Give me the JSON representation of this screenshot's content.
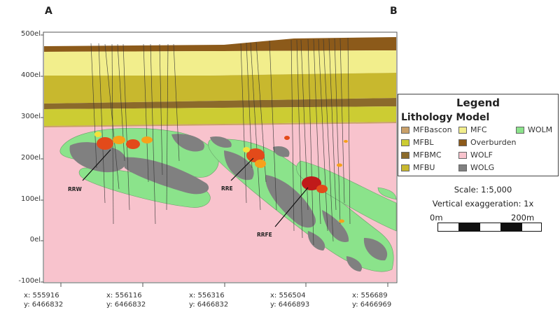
{
  "corners": {
    "left": "A",
    "right": "B"
  },
  "elevation_axis": [
    "500el",
    "400el",
    "300el",
    "200el",
    "100el",
    "0el",
    "-100el"
  ],
  "coordinates": [
    {
      "x": "x: 555916",
      "y": "y: 6466832"
    },
    {
      "x": "x: 556116",
      "y": "y: 6466832"
    },
    {
      "x": "x: 556316",
      "y": "y: 6466832"
    },
    {
      "x": "x: 556504",
      "y": "y: 6466893"
    },
    {
      "x": "x: 556689",
      "y": "y: 6466969"
    }
  ],
  "deposit_labels": [
    "RRW",
    "RRE",
    "RRFE"
  ],
  "legend": {
    "title": "Legend",
    "subtitle": "Lithology Model",
    "items": [
      {
        "label": "MFBascon",
        "color": "#c9a06a"
      },
      {
        "label": "MFBL",
        "color": "#cccc33"
      },
      {
        "label": "MFBMC",
        "color": "#8b6a2b"
      },
      {
        "label": "MFBU",
        "color": "#c8b82e"
      },
      {
        "label": "MFC",
        "color": "#f2ee8c"
      },
      {
        "label": "Overburden",
        "color": "#8c5a1a"
      },
      {
        "label": "WOLF",
        "color": "#f8c3cd"
      },
      {
        "label": "WOLG",
        "color": "#808080"
      },
      {
        "label": "WOLM",
        "color": "#8be38b"
      }
    ]
  },
  "scale": {
    "ratio": "Scale: 1:5,000",
    "exaggeration": "Vertical exaggeration: 1x",
    "start": "0m",
    "end": "200m"
  }
}
